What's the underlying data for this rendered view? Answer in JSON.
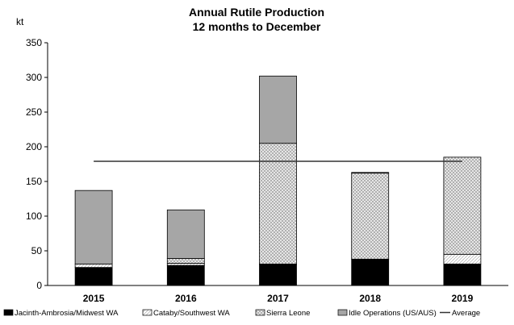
{
  "chart_data": {
    "type": "bar",
    "stacked": true,
    "title": "Annual Rutile Production",
    "subtitle": "12 months to December",
    "ylabel": "kt",
    "xlabel": "",
    "ylim": [
      0,
      350
    ],
    "yticks": [
      0,
      50,
      100,
      150,
      200,
      250,
      300,
      350
    ],
    "categories": [
      "2015",
      "2016",
      "2017",
      "2018",
      "2019"
    ],
    "series": [
      {
        "name": "Jacinth-Ambrosia/Midwest WA",
        "values": [
          26,
          29,
          30,
          38,
          31
        ],
        "color": "#000000",
        "pattern": "solid"
      },
      {
        "name": "Cataby/Southwest WA",
        "values": [
          5,
          3,
          1,
          0,
          14
        ],
        "color": "#ffffff",
        "pattern": "hatch-light"
      },
      {
        "name": "Sierra Leone",
        "values": [
          0,
          7,
          174,
          124,
          140
        ],
        "color": "#d4d4d4",
        "pattern": "crosshatch"
      },
      {
        "name": "Idle Operations (US/AUS)",
        "values": [
          106,
          70,
          97,
          1,
          0
        ],
        "color": "#a6a6a6",
        "pattern": "solid"
      }
    ],
    "average": {
      "name": "Average",
      "value": 179
    },
    "grid": false,
    "legend_position": "bottom"
  }
}
